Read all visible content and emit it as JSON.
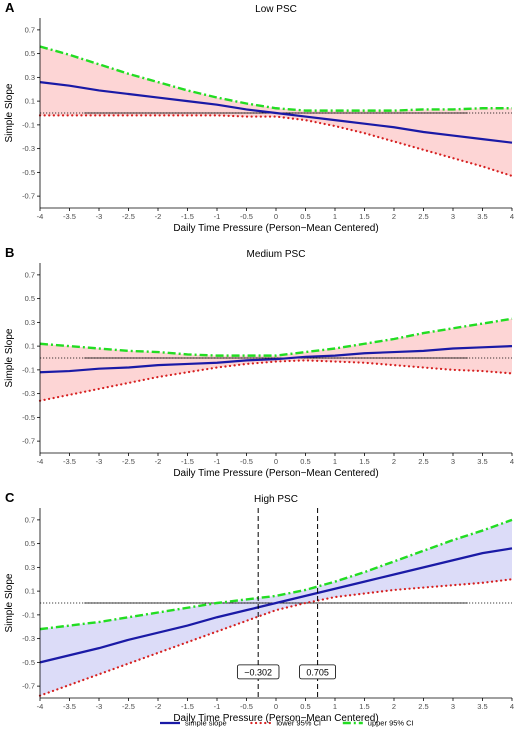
{
  "chart_data": [
    {
      "panel": "A",
      "type": "line",
      "title": "Low PSC",
      "xlabel": "Daily Time Pressure (Person−Mean Centered)",
      "ylabel": "Simple Slope",
      "xlim": [
        -4,
        4
      ],
      "ylim": [
        -0.8,
        0.8
      ],
      "xticks": [
        "-4",
        "-3.5",
        "-3",
        "-2.5",
        "-2",
        "-1.5",
        "-1",
        "-0.5",
        "0",
        "0.5",
        "1",
        "1.5",
        "2",
        "2.5",
        "3",
        "3.5",
        "4"
      ],
      "yticks": [
        "-0.7",
        "-0.5",
        "-0.3",
        "-0.1",
        "0.1",
        "0.3",
        "0.5",
        "0.7"
      ],
      "band_color": "#fdd5d5",
      "x": [
        -4,
        -3.5,
        -3,
        -2.5,
        -2,
        -1.5,
        -1,
        -0.5,
        0,
        0.5,
        1,
        1.5,
        2,
        2.5,
        3,
        3.5,
        4
      ],
      "series": [
        {
          "name": "simple slope",
          "key": "slope",
          "values": [
            0.26,
            0.23,
            0.19,
            0.16,
            0.13,
            0.1,
            0.07,
            0.03,
            0.0,
            -0.03,
            -0.06,
            -0.09,
            -0.12,
            -0.16,
            -0.19,
            -0.22,
            -0.25
          ]
        },
        {
          "name": "lower 95% CI",
          "key": "lower",
          "values": [
            -0.02,
            -0.02,
            -0.02,
            -0.02,
            -0.02,
            -0.02,
            -0.02,
            -0.03,
            -0.03,
            -0.06,
            -0.11,
            -0.17,
            -0.24,
            -0.31,
            -0.38,
            -0.45,
            -0.53
          ]
        },
        {
          "name": "upper 95% CI",
          "key": "upper",
          "values": [
            0.56,
            0.49,
            0.41,
            0.33,
            0.26,
            0.19,
            0.13,
            0.08,
            0.04,
            0.02,
            0.02,
            0.02,
            0.02,
            0.03,
            0.03,
            0.04,
            0.04
          ]
        }
      ],
      "jn_markers": []
    },
    {
      "panel": "B",
      "type": "line",
      "title": "Medium PSC",
      "xlabel": "Daily Time Pressure (Person−Mean Centered)",
      "ylabel": "Simple Slope",
      "xlim": [
        -4,
        4
      ],
      "ylim": [
        -0.8,
        0.8
      ],
      "xticks": [
        "-4",
        "-3.5",
        "-3",
        "-2.5",
        "-2",
        "-1.5",
        "-1",
        "-0.5",
        "0",
        "0.5",
        "1",
        "1.5",
        "2",
        "2.5",
        "3",
        "3.5",
        "4"
      ],
      "yticks": [
        "-0.7",
        "-0.5",
        "-0.3",
        "-0.1",
        "0.1",
        "0.3",
        "0.5",
        "0.7"
      ],
      "band_color": "#fdd5d5",
      "x": [
        -4,
        -3.5,
        -3,
        -2.5,
        -2,
        -1.5,
        -1,
        -0.5,
        0,
        0.5,
        1,
        1.5,
        2,
        2.5,
        3,
        3.5,
        4
      ],
      "series": [
        {
          "name": "simple slope",
          "key": "slope",
          "values": [
            -0.12,
            -0.11,
            -0.09,
            -0.08,
            -0.06,
            -0.05,
            -0.04,
            -0.02,
            -0.01,
            0.01,
            0.02,
            0.04,
            0.05,
            0.06,
            0.08,
            0.09,
            0.1
          ]
        },
        {
          "name": "lower 95% CI",
          "key": "lower",
          "values": [
            -0.36,
            -0.31,
            -0.26,
            -0.21,
            -0.16,
            -0.12,
            -0.08,
            -0.05,
            -0.03,
            -0.02,
            -0.03,
            -0.04,
            -0.06,
            -0.08,
            -0.1,
            -0.11,
            -0.13
          ]
        },
        {
          "name": "upper 95% CI",
          "key": "upper",
          "values": [
            0.12,
            0.1,
            0.08,
            0.06,
            0.05,
            0.03,
            0.02,
            0.02,
            0.02,
            0.05,
            0.08,
            0.12,
            0.16,
            0.21,
            0.25,
            0.29,
            0.33
          ]
        }
      ],
      "jn_markers": []
    },
    {
      "panel": "C",
      "type": "line",
      "title": "High PSC",
      "xlabel": "Daily Time Pressure (Person−Mean Centered)",
      "ylabel": "Simple Slope",
      "xlim": [
        -4,
        4
      ],
      "ylim": [
        -0.8,
        0.8
      ],
      "xticks": [
        "-4",
        "-3.5",
        "-3",
        "-2.5",
        "-2",
        "-1.5",
        "-1",
        "-0.5",
        "0",
        "0.5",
        "1",
        "1.5",
        "2",
        "2.5",
        "3",
        "3.5",
        "4"
      ],
      "yticks": [
        "-0.7",
        "-0.5",
        "-0.3",
        "-0.1",
        "0.1",
        "0.3",
        "0.5",
        "0.7"
      ],
      "band_color": "#dcdcf8",
      "x": [
        -4,
        -3.5,
        -3,
        -2.5,
        -2,
        -1.5,
        -1,
        -0.5,
        0,
        0.5,
        1,
        1.5,
        2,
        2.5,
        3,
        3.5,
        4
      ],
      "series": [
        {
          "name": "simple slope",
          "key": "slope",
          "values": [
            -0.5,
            -0.44,
            -0.38,
            -0.31,
            -0.25,
            -0.19,
            -0.12,
            -0.06,
            0.0,
            0.06,
            0.12,
            0.18,
            0.24,
            0.3,
            0.36,
            0.42,
            0.46
          ]
        },
        {
          "name": "lower 95% CI",
          "key": "lower",
          "values": [
            -0.78,
            -0.69,
            -0.6,
            -0.51,
            -0.42,
            -0.33,
            -0.24,
            -0.15,
            -0.06,
            0.0,
            0.05,
            0.08,
            0.11,
            0.13,
            0.15,
            0.17,
            0.2
          ]
        },
        {
          "name": "upper 95% CI",
          "key": "upper",
          "values": [
            -0.22,
            -0.19,
            -0.16,
            -0.12,
            -0.08,
            -0.04,
            0.0,
            0.03,
            0.06,
            0.11,
            0.18,
            0.26,
            0.35,
            0.44,
            0.53,
            0.61,
            0.7
          ]
        }
      ],
      "jn_markers": [
        {
          "x": -0.302,
          "label": "−0.302"
        },
        {
          "x": 0.705,
          "label": "0.705"
        }
      ]
    }
  ],
  "legend": {
    "placement": "bottom",
    "items": [
      {
        "name": "simple slope",
        "key": "slope"
      },
      {
        "name": "lower 95% CI",
        "key": "lower"
      },
      {
        "name": "upper 95% CI",
        "key": "upper"
      }
    ]
  },
  "colors": {
    "slope": "#1a1aa6",
    "lower": "#d62020",
    "upper": "#22dd22",
    "zero_line": "#000000",
    "axis": "#000000",
    "tick_text": "#4d4d4d"
  }
}
